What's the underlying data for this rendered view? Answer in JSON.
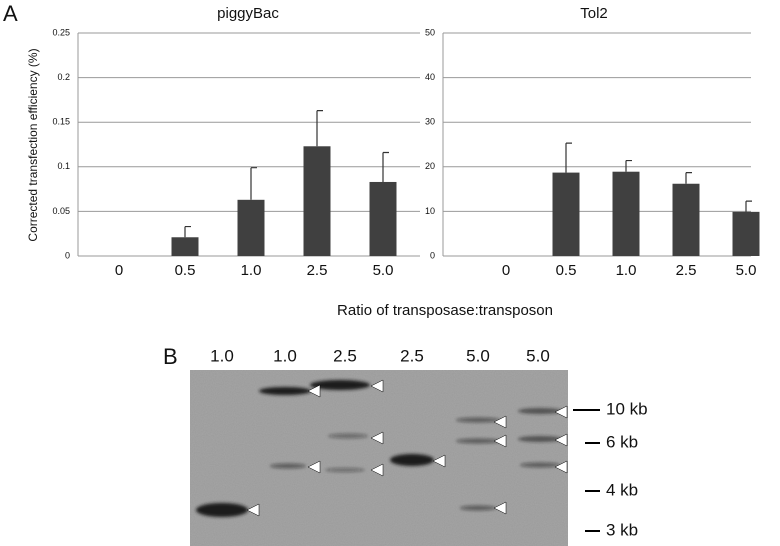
{
  "figure": {
    "panel_a": "A",
    "x_label": "Ratio of transposase:transposon"
  },
  "chart_data": [
    {
      "type": "bar",
      "title": "piggyBac",
      "y_label": "Corrected transfection efficiency (%)",
      "categories": [
        "0",
        "0.5",
        "1.0",
        "2.5",
        "5.0"
      ],
      "values": [
        0,
        0.021,
        0.063,
        0.123,
        0.083
      ],
      "errors": [
        null,
        0.012,
        0.036,
        0.04,
        0.033
      ],
      "color": "#404040",
      "ylim": [
        0,
        0.25
      ],
      "yticks": [
        0,
        0.05,
        0.1,
        0.15,
        0.2,
        0.25
      ],
      "grid": true
    },
    {
      "type": "bar",
      "title": "Tol2",
      "categories": [
        "0",
        "0.5",
        "1.0",
        "2.5",
        "5.0"
      ],
      "values": [
        0,
        18.7,
        18.9,
        16.2,
        9.9
      ],
      "errors": [
        null,
        6.6,
        2.5,
        2.5,
        2.4
      ],
      "color": "#404040",
      "ylim": [
        0,
        50
      ],
      "yticks": [
        0,
        10,
        20,
        30,
        40,
        50
      ],
      "grid": true
    }
  ],
  "gel": {
    "panel_label": "B",
    "lanes": [
      "1.0",
      "1.0",
      "2.5",
      "2.5",
      "5.0",
      "5.0"
    ],
    "markers": [
      "10 kb",
      "6 kb",
      "4 kb",
      "3 kb"
    ]
  }
}
